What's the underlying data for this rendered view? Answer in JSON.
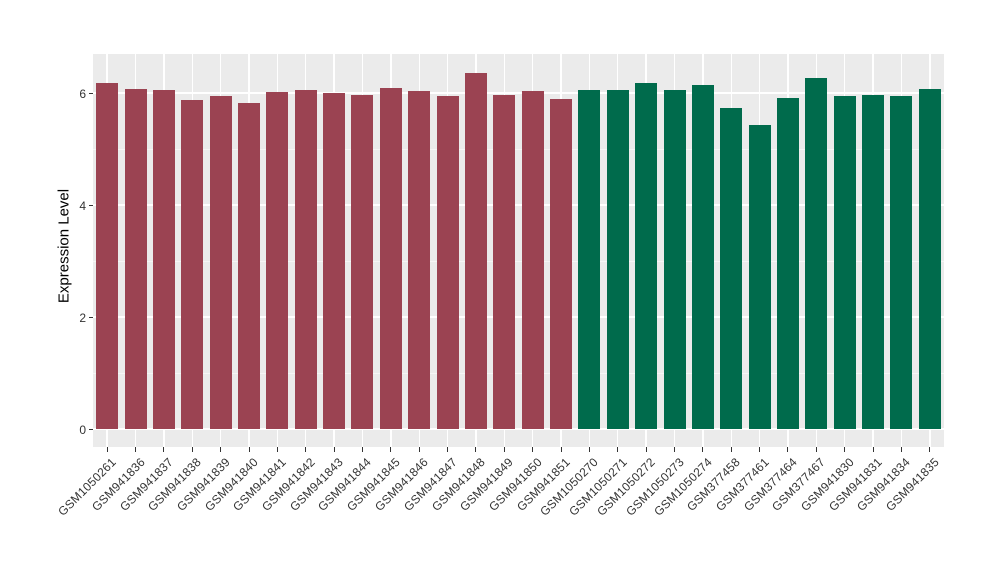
{
  "chart_data": {
    "type": "bar",
    "title": "",
    "xlabel": "",
    "ylabel": "Expression Level",
    "ylim": [
      -0.32,
      6.7
    ],
    "yticks": [
      0,
      2,
      4,
      6
    ],
    "yticks_minor": [
      1,
      3,
      5
    ],
    "grid": "on",
    "legend_position": "none",
    "panel_background": "#EBEBEB",
    "gridline_color": "#FFFFFF",
    "tick_color": "#333333",
    "axis_text_color": "#333333",
    "group_colors": {
      "group1": "#9B4352",
      "group2": "#006B4C"
    },
    "bars": [
      {
        "label": "GSM1050261",
        "value": 6.18,
        "group": "group1"
      },
      {
        "label": "GSM941836",
        "value": 6.07,
        "group": "group1"
      },
      {
        "label": "GSM941837",
        "value": 6.06,
        "group": "group1"
      },
      {
        "label": "GSM941838",
        "value": 5.87,
        "group": "group1"
      },
      {
        "label": "GSM941839",
        "value": 5.94,
        "group": "group1"
      },
      {
        "label": "GSM941840",
        "value": 5.82,
        "group": "group1"
      },
      {
        "label": "GSM941841",
        "value": 6.01,
        "group": "group1"
      },
      {
        "label": "GSM941842",
        "value": 6.06,
        "group": "group1"
      },
      {
        "label": "GSM941843",
        "value": 6.0,
        "group": "group1"
      },
      {
        "label": "GSM941844",
        "value": 5.96,
        "group": "group1"
      },
      {
        "label": "GSM941845",
        "value": 6.09,
        "group": "group1"
      },
      {
        "label": "GSM941846",
        "value": 6.03,
        "group": "group1"
      },
      {
        "label": "GSM941847",
        "value": 5.95,
        "group": "group1"
      },
      {
        "label": "GSM941848",
        "value": 6.35,
        "group": "group1"
      },
      {
        "label": "GSM941849",
        "value": 5.96,
        "group": "group1"
      },
      {
        "label": "GSM941850",
        "value": 6.04,
        "group": "group1"
      },
      {
        "label": "GSM941851",
        "value": 5.89,
        "group": "group1"
      },
      {
        "label": "GSM1050270",
        "value": 6.05,
        "group": "group2"
      },
      {
        "label": "GSM1050271",
        "value": 6.06,
        "group": "group2"
      },
      {
        "label": "GSM1050272",
        "value": 6.17,
        "group": "group2"
      },
      {
        "label": "GSM1050273",
        "value": 6.05,
        "group": "group2"
      },
      {
        "label": "GSM1050274",
        "value": 6.14,
        "group": "group2"
      },
      {
        "label": "GSM377458",
        "value": 5.73,
        "group": "group2"
      },
      {
        "label": "GSM377461",
        "value": 5.42,
        "group": "group2"
      },
      {
        "label": "GSM377464",
        "value": 5.91,
        "group": "group2"
      },
      {
        "label": "GSM377467",
        "value": 6.27,
        "group": "group2"
      },
      {
        "label": "GSM941830",
        "value": 5.94,
        "group": "group2"
      },
      {
        "label": "GSM941831",
        "value": 5.96,
        "group": "group2"
      },
      {
        "label": "GSM941834",
        "value": 5.95,
        "group": "group2"
      },
      {
        "label": "GSM941835",
        "value": 6.08,
        "group": "group2"
      }
    ]
  }
}
